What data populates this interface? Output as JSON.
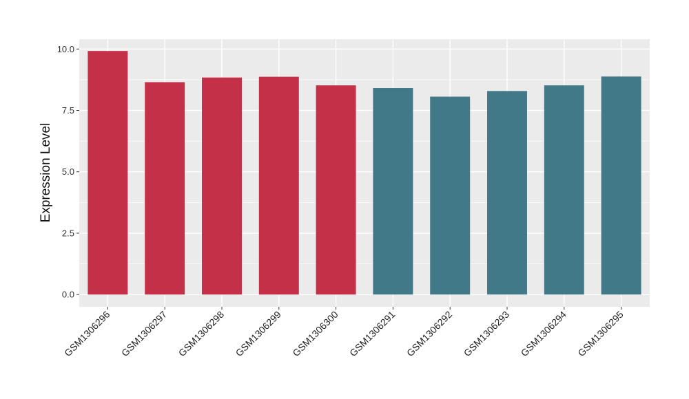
{
  "chart_data": {
    "type": "bar",
    "title": "",
    "xlabel": "",
    "ylabel": "Expression Level",
    "categories": [
      "GSM1306296",
      "GSM1306297",
      "GSM1306298",
      "GSM1306299",
      "GSM1306300",
      "GSM1306291",
      "GSM1306292",
      "GSM1306293",
      "GSM1306294",
      "GSM1306295"
    ],
    "values": [
      9.92,
      8.65,
      8.84,
      8.87,
      8.52,
      8.41,
      8.06,
      8.29,
      8.52,
      8.88
    ],
    "bar_colors": [
      "#c33048",
      "#c33048",
      "#c33048",
      "#c33048",
      "#c33048",
      "#427989",
      "#427989",
      "#427989",
      "#427989",
      "#427989"
    ],
    "ylim": [
      -0.5,
      10.4
    ],
    "yticks": [
      0.0,
      2.5,
      5.0,
      7.5,
      10.0
    ],
    "ytick_labels": [
      "0.0",
      "2.5",
      "5.0",
      "7.5",
      "10.0"
    ],
    "grid": true,
    "panel_background": "#ebebeb",
    "grid_color": "#ffffff"
  }
}
